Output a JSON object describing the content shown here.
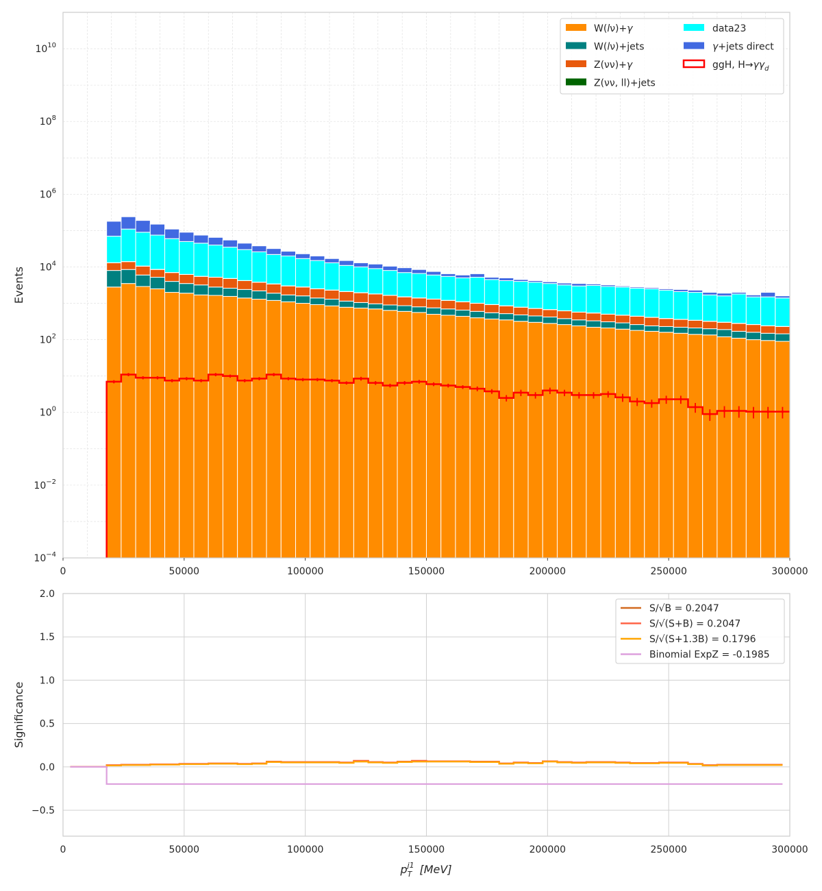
{
  "chart_data": [
    {
      "type": "bar",
      "subtype": "stacked-histogram",
      "ylabel": "Events",
      "yscale": "log",
      "ylim": [
        0.0001,
        100000000000
      ],
      "xlim": [
        0,
        300000
      ],
      "grid": true,
      "legend_position": "top-right",
      "bin_start": 18000,
      "bin_width": 6000,
      "n_bins": 47,
      "x_ticks": [
        "0",
        "50000",
        "100000",
        "150000",
        "200000",
        "250000",
        "300000"
      ],
      "y_ticks": [
        {
          "base": "10",
          "exp": "−4"
        },
        {
          "base": "10",
          "exp": "−2"
        },
        {
          "base": "10",
          "exp": "0"
        },
        {
          "base": "10",
          "exp": "2"
        },
        {
          "base": "10",
          "exp": "4"
        },
        {
          "base": "10",
          "exp": "6"
        },
        {
          "base": "10",
          "exp": "8"
        },
        {
          "base": "10",
          "exp": "10"
        }
      ],
      "stack_order_bottom_to_top": [
        "W(lν)+γ",
        "W(lν)+jets",
        "Z(νν)+γ",
        "Z(νν, ll)+jets",
        "data23",
        "γ+jets direct"
      ],
      "series": [
        {
          "name": "W(lν)+γ",
          "color": "#ff8c00",
          "cumulative_top": [
            2800,
            3500,
            2900,
            2500,
            2000,
            1900,
            1700,
            1650,
            1550,
            1400,
            1300,
            1200,
            1100,
            1000,
            920,
            850,
            780,
            740,
            700,
            640,
            600,
            560,
            500,
            470,
            440,
            400,
            370,
            350,
            320,
            300,
            280,
            260,
            240,
            220,
            210,
            195,
            180,
            170,
            160,
            150,
            140,
            135,
            120,
            110,
            100,
            95,
            90
          ]
        },
        {
          "name": "W(lν)+jets",
          "color": "#008080",
          "cumulative_top": [
            8000,
            8500,
            6000,
            5200,
            4000,
            3500,
            3200,
            2800,
            2600,
            2400,
            2200,
            1900,
            1700,
            1600,
            1400,
            1300,
            1150,
            1050,
            970,
            900,
            860,
            800,
            750,
            700,
            650,
            600,
            550,
            520,
            480,
            450,
            420,
            380,
            350,
            330,
            310,
            290,
            260,
            240,
            230,
            220,
            210,
            200,
            190,
            170,
            160,
            150,
            145
          ]
        },
        {
          "name": "Z(νν)+γ",
          "color": "#e8590c",
          "cumulative_top": [
            13000,
            14000,
            10500,
            8500,
            7000,
            6200,
            5500,
            5200,
            4800,
            4200,
            3800,
            3400,
            3000,
            2800,
            2500,
            2300,
            2100,
            1950,
            1800,
            1650,
            1500,
            1400,
            1300,
            1200,
            1100,
            1000,
            920,
            850,
            780,
            720,
            670,
            620,
            570,
            540,
            500,
            470,
            440,
            410,
            380,
            360,
            340,
            320,
            300,
            280,
            260,
            240,
            230
          ]
        },
        {
          "name": "Z(νν, ll)+jets",
          "color": "#006400",
          "cumulative_top": [
            13100,
            14100,
            10600,
            8600,
            7060,
            6250,
            5540,
            5240,
            4840,
            4230,
            3830,
            3430,
            3025,
            2825,
            2520,
            2320,
            2120,
            1965,
            1815,
            1665,
            1512,
            1412,
            1311,
            1210,
            1109,
            1008,
            928,
            857,
            786,
            726,
            676,
            625,
            575,
            545,
            505,
            474,
            444,
            414,
            384,
            363,
            343,
            323,
            303,
            283,
            262,
            242,
            232
          ]
        },
        {
          "name": "data23",
          "color": "#00ffff",
          "cumulative_top": [
            70000,
            110000,
            90000,
            75000,
            60000,
            50000,
            45000,
            40000,
            35000,
            30000,
            26000,
            22000,
            20000,
            17000,
            15000,
            13000,
            11000,
            10000,
            9000,
            8000,
            7000,
            6600,
            6000,
            5500,
            5000,
            5200,
            4500,
            4200,
            4000,
            3800,
            3500,
            3200,
            3000,
            3100,
            2900,
            2800,
            2600,
            2500,
            2300,
            2100,
            2000,
            1700,
            1600,
            1800,
            1500,
            1500,
            1400
          ]
        },
        {
          "name": "γ+jets direct",
          "color": "#4169e1",
          "cumulative_top": [
            180000,
            240000,
            190000,
            150000,
            110000,
            90000,
            75000,
            65000,
            55000,
            45000,
            38000,
            32000,
            27000,
            23000,
            20000,
            17000,
            15000,
            13000,
            12000,
            10500,
            9500,
            8500,
            7500,
            6500,
            6000,
            6500,
            5200,
            5000,
            4500,
            4200,
            3900,
            3600,
            3500,
            3400,
            3200,
            3000,
            2800,
            2700,
            2500,
            2400,
            2300,
            2000,
            1900,
            2000,
            1700,
            2000,
            1600
          ]
        }
      ],
      "signal": {
        "name": "ggH, H→γγ_d",
        "color": "#ff0000",
        "values": [
          7,
          11,
          9,
          9,
          7.5,
          8.5,
          7.5,
          11,
          10,
          7.5,
          8.5,
          11,
          8.5,
          8,
          8,
          7.5,
          6.5,
          8.5,
          6.5,
          5.5,
          6.5,
          7,
          6,
          5.5,
          5,
          4.5,
          3.8,
          2.5,
          3.5,
          3,
          4,
          3.5,
          3,
          3,
          3.2,
          2.6,
          2,
          1.8,
          2.3,
          2.3,
          1.4,
          0.9,
          1.1,
          1.1,
          1.05,
          1.05,
          1.05
        ],
        "rel_error": [
          0.1,
          0.1,
          0.1,
          0.1,
          0.1,
          0.1,
          0.1,
          0.1,
          0.1,
          0.1,
          0.1,
          0.1,
          0.1,
          0.1,
          0.1,
          0.1,
          0.1,
          0.12,
          0.12,
          0.12,
          0.12,
          0.12,
          0.12,
          0.12,
          0.12,
          0.15,
          0.15,
          0.2,
          0.2,
          0.2,
          0.2,
          0.2,
          0.2,
          0.2,
          0.2,
          0.25,
          0.25,
          0.25,
          0.25,
          0.25,
          0.3,
          0.35,
          0.35,
          0.35,
          0.35,
          0.35,
          0.35
        ]
      }
    },
    {
      "type": "line",
      "subtype": "step",
      "ylabel": "Significance",
      "xlabel": {
        "base": "p",
        "sub": "T",
        "sup": "j1",
        "unit": " [MeV]"
      },
      "xlim": [
        0,
        300000
      ],
      "ylim": [
        -0.8,
        2.0
      ],
      "grid": true,
      "legend_position": "top-right",
      "x_ticks": [
        "0",
        "50000",
        "100000",
        "150000",
        "200000",
        "250000",
        "300000"
      ],
      "y_ticks": [
        "−0.5",
        "0.0",
        "0.5",
        "1.0",
        "1.5",
        "2.0"
      ],
      "x_start": 3000,
      "x_end": 297000,
      "step_edges": [
        18000,
        24000,
        30000,
        36000,
        42000,
        48000,
        54000,
        60000,
        66000,
        72000,
        78000,
        84000,
        90000,
        96000,
        102000,
        108000,
        114000,
        120000,
        126000,
        132000,
        138000,
        144000,
        150000,
        156000,
        162000,
        168000,
        174000,
        180000,
        186000,
        192000,
        198000,
        204000,
        210000,
        216000,
        222000,
        228000,
        234000,
        240000,
        246000,
        252000,
        258000,
        264000,
        270000,
        276000,
        282000,
        288000,
        294000
      ],
      "series": [
        {
          "name": "S/√B = 0.2047",
          "color": "#d2691e",
          "pre_value": 0,
          "values": [
            0.02,
            0.025,
            0.025,
            0.03,
            0.03,
            0.035,
            0.035,
            0.04,
            0.04,
            0.035,
            0.04,
            0.06,
            0.055,
            0.055,
            0.055,
            0.055,
            0.05,
            0.07,
            0.055,
            0.05,
            0.06,
            0.07,
            0.065,
            0.065,
            0.065,
            0.06,
            0.06,
            0.04,
            0.05,
            0.045,
            0.065,
            0.055,
            0.05,
            0.055,
            0.055,
            0.05,
            0.045,
            0.045,
            0.05,
            0.05,
            0.035,
            0.02,
            0.025,
            0.025,
            0.025,
            0.025,
            0.025
          ]
        },
        {
          "name": "S/√(S+B) = 0.2047",
          "color": "#ff6347",
          "pre_value": 0,
          "values": [
            0.02,
            0.025,
            0.025,
            0.03,
            0.03,
            0.035,
            0.035,
            0.04,
            0.04,
            0.035,
            0.04,
            0.06,
            0.055,
            0.055,
            0.055,
            0.055,
            0.05,
            0.07,
            0.055,
            0.05,
            0.06,
            0.07,
            0.065,
            0.065,
            0.065,
            0.06,
            0.06,
            0.04,
            0.05,
            0.045,
            0.065,
            0.055,
            0.05,
            0.055,
            0.055,
            0.05,
            0.045,
            0.045,
            0.05,
            0.05,
            0.035,
            0.02,
            0.025,
            0.025,
            0.025,
            0.025,
            0.025
          ]
        },
        {
          "name": "S/√(S+1.3B) = 0.1796",
          "color": "#ffa500",
          "pre_value": 0,
          "values": [
            0.015,
            0.02,
            0.02,
            0.025,
            0.025,
            0.03,
            0.03,
            0.035,
            0.035,
            0.03,
            0.035,
            0.055,
            0.05,
            0.05,
            0.05,
            0.05,
            0.045,
            0.06,
            0.05,
            0.045,
            0.055,
            0.06,
            0.06,
            0.06,
            0.06,
            0.055,
            0.055,
            0.035,
            0.045,
            0.04,
            0.06,
            0.05,
            0.045,
            0.05,
            0.05,
            0.045,
            0.04,
            0.04,
            0.045,
            0.045,
            0.03,
            0.015,
            0.02,
            0.02,
            0.02,
            0.02,
            0.02
          ]
        },
        {
          "name": "Binomial ExpZ = -0.1985",
          "color": "#dda0dd",
          "pre_value": 0,
          "values": [
            -0.1985,
            -0.1985,
            -0.1985,
            -0.1985,
            -0.1985,
            -0.1985,
            -0.1985,
            -0.1985,
            -0.1985,
            -0.1985,
            -0.1985,
            -0.1985,
            -0.1985,
            -0.1985,
            -0.1985,
            -0.1985,
            -0.1985,
            -0.1985,
            -0.1985,
            -0.1985,
            -0.1985,
            -0.1985,
            -0.1985,
            -0.1985,
            -0.1985,
            -0.1985,
            -0.1985,
            -0.1985,
            -0.1985,
            -0.1985,
            -0.1985,
            -0.1985,
            -0.1985,
            -0.1985,
            -0.1985,
            -0.1985,
            -0.1985,
            -0.1985,
            -0.1985,
            -0.1985,
            -0.1985,
            -0.1985,
            -0.1985,
            -0.1985,
            -0.1985,
            -0.1985,
            -0.1985
          ]
        }
      ],
      "legend_text_color": "#800080"
    }
  ]
}
